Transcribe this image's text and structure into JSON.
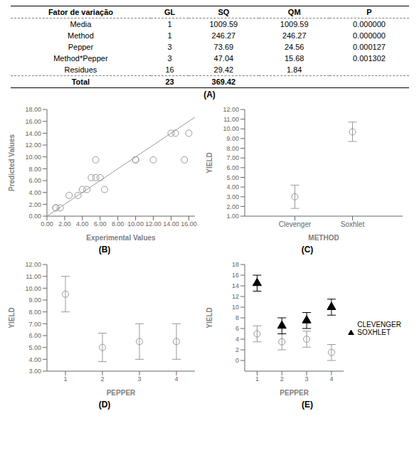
{
  "chart_data": [
    {
      "type": "table",
      "title": "(A)",
      "headers": [
        "Fator de variação",
        "GL",
        "SQ",
        "QM",
        "P"
      ],
      "rows": [
        [
          "Media",
          "1",
          "1009.59",
          "1009.59",
          "0.000000"
        ],
        [
          "Method",
          "1",
          "246.27",
          "246.27",
          "0.000000"
        ],
        [
          "Pepper",
          "3",
          "73.69",
          "24.56",
          "0.000127"
        ],
        [
          "Method*Pepper",
          "3",
          "47.04",
          "15.68",
          "0.001302"
        ],
        [
          "Residues",
          "16",
          "29.42",
          "1.84",
          null
        ],
        [
          "Total",
          "23",
          "369.42",
          null,
          null
        ]
      ]
    },
    {
      "type": "scatter",
      "title": "(B)",
      "xlabel": "Experimental Values",
      "ylabel": "Predicted Values",
      "xlim": [
        0.0,
        16.69
      ],
      "ylim": [
        0.0,
        18.0
      ],
      "xticks": [
        {
          "value": 0.0,
          "label": "0.00"
        },
        {
          "value": 2.0,
          "label": "2.00"
        },
        {
          "value": 4.0,
          "label": "4.00"
        },
        {
          "value": 6.0,
          "label": "6.00"
        },
        {
          "value": 8.0,
          "label": "8.00"
        },
        {
          "value": 10.0,
          "label": "10.00"
        },
        {
          "value": 12.0,
          "label": "12.00"
        },
        {
          "value": 14.0,
          "label": "14.00"
        },
        {
          "value": 16.0,
          "label": "16.00"
        }
      ],
      "yticks": [
        {
          "value": 0.0,
          "label": "0.00"
        },
        {
          "value": 2.0,
          "label": "2.00"
        },
        {
          "value": 4.0,
          "label": "4.00"
        },
        {
          "value": 6.0,
          "label": "6.00"
        },
        {
          "value": 8.0,
          "label": "8.00"
        },
        {
          "value": 10.0,
          "label": "10.00"
        },
        {
          "value": 12.0,
          "label": "12.00"
        },
        {
          "value": 14.0,
          "label": "14.00"
        },
        {
          "value": 16.0,
          "label": "16.00"
        },
        {
          "value": 18.0,
          "label": "18.00"
        }
      ],
      "series": [
        {
          "type": "scatter",
          "color": "#999999",
          "marker": "open_circle",
          "x": [
            1.0,
            1.0,
            1.5,
            2.5,
            3.5,
            4.0,
            4.5,
            5.0,
            5.5,
            5.5,
            6.0,
            6.5,
            10.0,
            10.0,
            12.0,
            14.0,
            14.5,
            15.5,
            16.0
          ],
          "values": [
            1.4,
            1.4,
            1.4,
            3.5,
            3.5,
            4.5,
            4.5,
            6.5,
            6.5,
            9.5,
            6.5,
            4.5,
            9.5,
            9.5,
            9.5,
            14.0,
            14.0,
            9.5,
            14.0
          ]
        },
        {
          "type": "line",
          "color": "#999999",
          "x": [
            0,
            16.69
          ],
          "values": [
            0,
            16.69
          ]
        }
      ]
    },
    {
      "type": "scatter",
      "title": "(C)",
      "xlabel": "METHOD",
      "ylabel": "YIELD",
      "categories": [
        "Clevenger",
        "Soxhlet"
      ],
      "ylim": [
        1.0,
        12.0
      ],
      "yticks": [
        {
          "value": 1.0,
          "label": "1.00"
        },
        {
          "value": 2.0,
          "label": "2.00"
        },
        {
          "value": 3.0,
          "label": "3.00"
        },
        {
          "value": 4.0,
          "label": "4.00"
        },
        {
          "value": 5.0,
          "label": "5.00"
        },
        {
          "value": 6.0,
          "label": "6.00"
        },
        {
          "value": 7.0,
          "label": "7.00"
        },
        {
          "value": 8.0,
          "label": "8.00"
        },
        {
          "value": 9.0,
          "label": "9.00"
        },
        {
          "value": 10.0,
          "label": "10.00"
        },
        {
          "value": 11.0,
          "label": "11.00"
        },
        {
          "value": 12.0,
          "label": "12.00"
        }
      ],
      "series": [
        {
          "color": "#999999",
          "marker": "open_circle",
          "values": [
            3.0,
            9.7
          ],
          "errors": [
            1.2,
            1.0
          ]
        }
      ]
    },
    {
      "type": "scatter",
      "title": "(D)",
      "xlabel": "PEPPER",
      "ylabel": "YIELD",
      "x": [
        1,
        2,
        3,
        4
      ],
      "xlim": [
        0.5,
        4.5
      ],
      "xticks": [
        1,
        2,
        3,
        4
      ],
      "ylim": [
        3.0,
        12.0
      ],
      "yticks": [
        {
          "value": 3.0,
          "label": "3.00"
        },
        {
          "value": 4.0,
          "label": "4.00"
        },
        {
          "value": 5.0,
          "label": "5.00"
        },
        {
          "value": 6.0,
          "label": "6.00"
        },
        {
          "value": 7.0,
          "label": "7.00"
        },
        {
          "value": 8.0,
          "label": "8.00"
        },
        {
          "value": 9.0,
          "label": "9.00"
        },
        {
          "value": 10.0,
          "label": "10.00"
        },
        {
          "value": 11.0,
          "label": "11.00"
        },
        {
          "value": 12.0,
          "label": "12.00"
        }
      ],
      "series": [
        {
          "color": "#999999",
          "marker": "open_circle",
          "values": [
            9.5,
            5.0,
            5.5,
            5.5
          ],
          "errors_lower": [
            1.5,
            1.2,
            1.5,
            1.5
          ],
          "errors_upper": [
            1.5,
            1.2,
            1.5,
            1.5
          ]
        }
      ]
    },
    {
      "type": "scatter",
      "title": "(E)",
      "xlabel": "PEPPER",
      "ylabel": "YIELD",
      "x": [
        1,
        2,
        3,
        4
      ],
      "xlim": [
        0.5,
        4.5
      ],
      "xticks": [
        1,
        2,
        3,
        4
      ],
      "ylim": [
        -2,
        18
      ],
      "yticks": [
        0,
        2,
        4,
        6,
        8,
        10,
        12,
        14,
        16,
        18
      ],
      "legend": "right",
      "series": [
        {
          "name": "CLEVENGER",
          "color": "#999999",
          "marker": "open_circle",
          "values": [
            5.0,
            3.5,
            4.0,
            1.5
          ],
          "errors_lower": [
            1.5,
            1.5,
            1.5,
            1.5
          ],
          "errors_upper": [
            1.5,
            1.5,
            1.5,
            1.5
          ]
        },
        {
          "name": "SOXHLET",
          "color": "#000000",
          "marker": "triangle",
          "values": [
            14.5,
            6.5,
            7.5,
            10.0
          ],
          "errors_lower": [
            1.5,
            1.5,
            1.5,
            1.5
          ],
          "errors_upper": [
            1.5,
            1.5,
            1.5,
            1.5
          ]
        }
      ]
    }
  ]
}
